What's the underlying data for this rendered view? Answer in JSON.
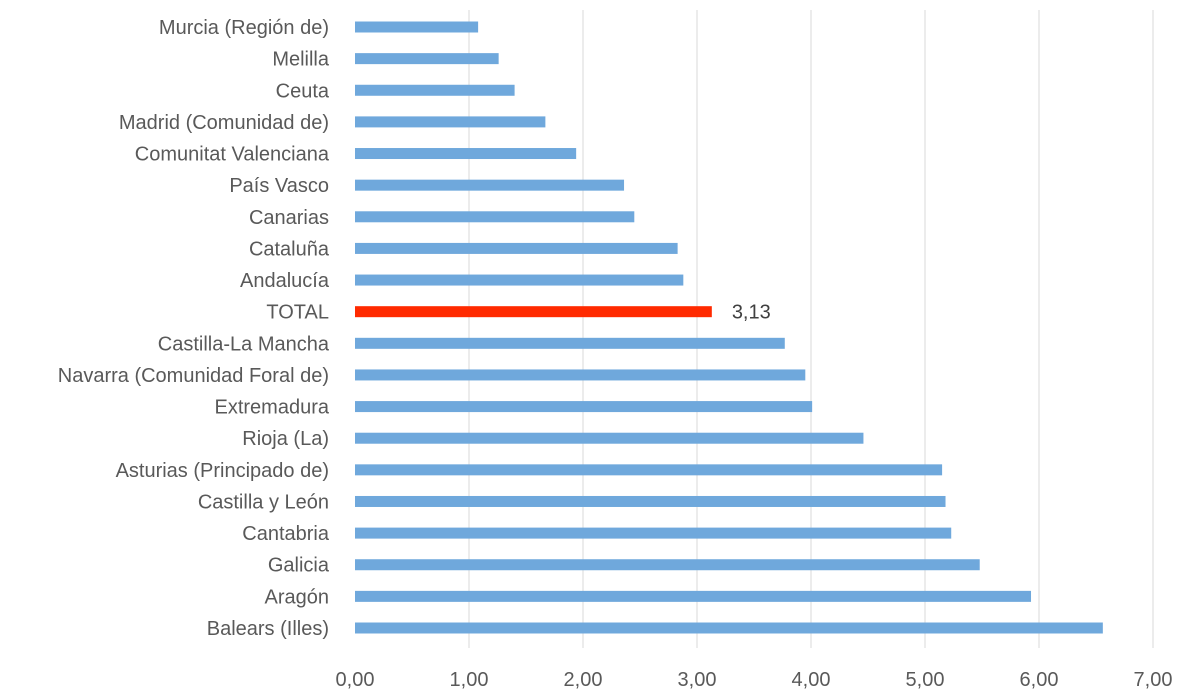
{
  "chart_data": {
    "type": "bar",
    "orientation": "horizontal",
    "title": "",
    "xlabel": "",
    "ylabel": "",
    "xlim": [
      0,
      7
    ],
    "x_ticks": [
      0,
      1,
      2,
      3,
      4,
      5,
      6,
      7
    ],
    "x_tick_labels": [
      "0,00",
      "1,00",
      "2,00",
      "3,00",
      "4,00",
      "5,00",
      "6,00",
      "7,00"
    ],
    "grid": "vertical",
    "legend": "none",
    "colors": {
      "default_bar": "#6fa8dc",
      "highlight_bar": "#ff2a00",
      "grid": "#d9d9d9",
      "text": "#595959"
    },
    "categories": [
      "Murcia (Región de)",
      "Melilla",
      "Ceuta",
      "Madrid (Comunidad de)",
      "Comunitat Valenciana",
      "País Vasco",
      "Canarias",
      "Cataluña",
      "Andalucía",
      "TOTAL",
      "Castilla-La Mancha",
      "Navarra (Comunidad Foral de)",
      "Extremadura",
      "Rioja (La)",
      "Asturias (Principado de)",
      "Castilla y León",
      "Cantabria",
      "Galicia",
      "Aragón",
      "Balears (Illes)"
    ],
    "values": [
      1.08,
      1.26,
      1.4,
      1.67,
      1.94,
      2.36,
      2.45,
      2.83,
      2.88,
      3.13,
      3.77,
      3.95,
      4.01,
      4.46,
      5.15,
      5.18,
      5.23,
      5.48,
      5.93,
      6.56
    ],
    "highlight_category": "TOTAL",
    "data_labels": [
      {
        "category": "TOTAL",
        "text": "3,13"
      }
    ]
  }
}
